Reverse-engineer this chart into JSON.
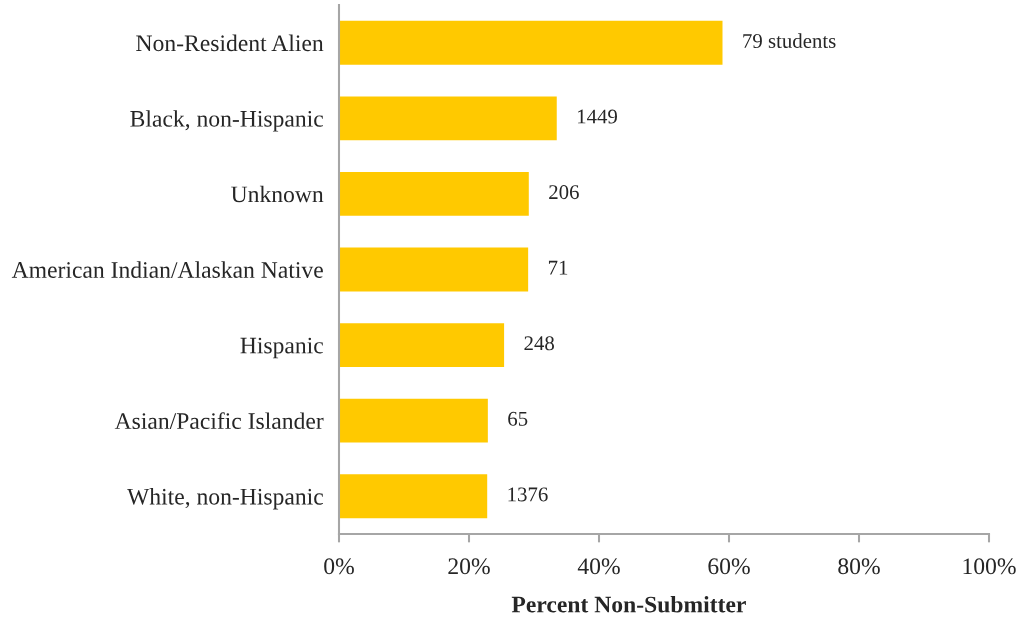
{
  "chart_data": {
    "type": "bar",
    "orientation": "horizontal",
    "xlabel": "Percent Non-Submitter",
    "categories": [
      "Non-Resident Alien",
      "Black, non-Hispanic",
      "Unknown",
      "American Indian/Alaskan Native",
      "Hispanic",
      "Asian/Pacific Islander",
      "White, non-Hispanic"
    ],
    "values": [
      59.0,
      33.5,
      29.2,
      29.1,
      25.4,
      22.9,
      22.8
    ],
    "annotations": [
      {
        "text": "79 students",
        "x": 59.0,
        "y": "Non-Resident Alien"
      },
      {
        "text": "1449",
        "x": 33.5,
        "y": "Black, non-Hispanic"
      },
      {
        "text": "206",
        "x": 29.2,
        "y": "Unknown"
      },
      {
        "text": "71",
        "x": 29.1,
        "y": "American Indian/Alaskan Native"
      },
      {
        "text": "248",
        "x": 25.4,
        "y": "Hispanic"
      },
      {
        "text": "65",
        "x": 22.9,
        "y": "Asian/Pacific Islander"
      },
      {
        "text": "1376",
        "x": 22.8,
        "y": "White, non-Hispanic"
      }
    ],
    "color": "#ffc900",
    "xlim": [
      0,
      100
    ],
    "xticks": [
      {
        "value": 0,
        "label": "0%"
      },
      {
        "value": 20,
        "label": "20%"
      },
      {
        "value": 40,
        "label": "40%"
      },
      {
        "value": 60,
        "label": "60%"
      },
      {
        "value": 80,
        "label": "80%"
      },
      {
        "value": 100,
        "label": "100%"
      }
    ]
  }
}
